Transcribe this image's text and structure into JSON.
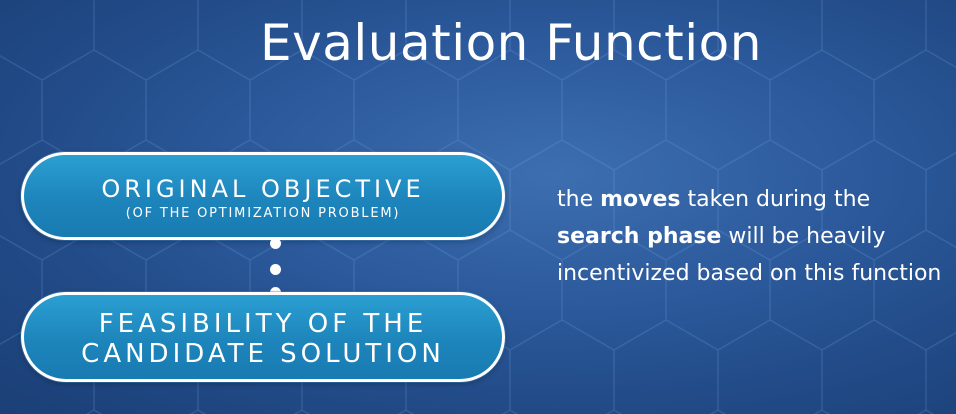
{
  "slide": {
    "title": "Evaluation Function",
    "box_objective": {
      "line1": "Original Objective",
      "line2": "(of the optimization problem)"
    },
    "box_feasibility": {
      "line1": "Feasibility of the",
      "line2": "candidate solution"
    },
    "description": {
      "part1": "the ",
      "bold1": "moves",
      "part2": " taken during the ",
      "bold2": "search phase",
      "part3": " will be heavily incentivized based on this function"
    }
  },
  "colors": {
    "background": "#2c5a9c",
    "pill_fill": "#1d85bb",
    "pill_border": "#ffffff",
    "text": "#ffffff"
  }
}
